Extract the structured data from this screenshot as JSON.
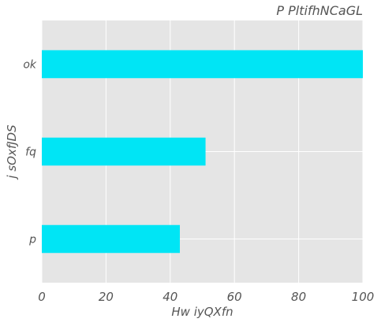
{
  "chart_data": {
    "type": "bar",
    "orientation": "horizontal",
    "title": "P PltifhNCaGL",
    "xlabel": "Hw iyQXfn",
    "ylabel": "j sOxfJDS",
    "categories": [
      "ok",
      "fq",
      "p"
    ],
    "values": [
      100,
      51,
      43
    ],
    "xlim": [
      0,
      100
    ],
    "xticks": [
      0,
      20,
      40,
      60,
      80,
      100
    ],
    "grid": true,
    "bar_color": "#00E5F5",
    "background_color": "#E5E5E5",
    "grid_color": "#FFFFFF"
  }
}
